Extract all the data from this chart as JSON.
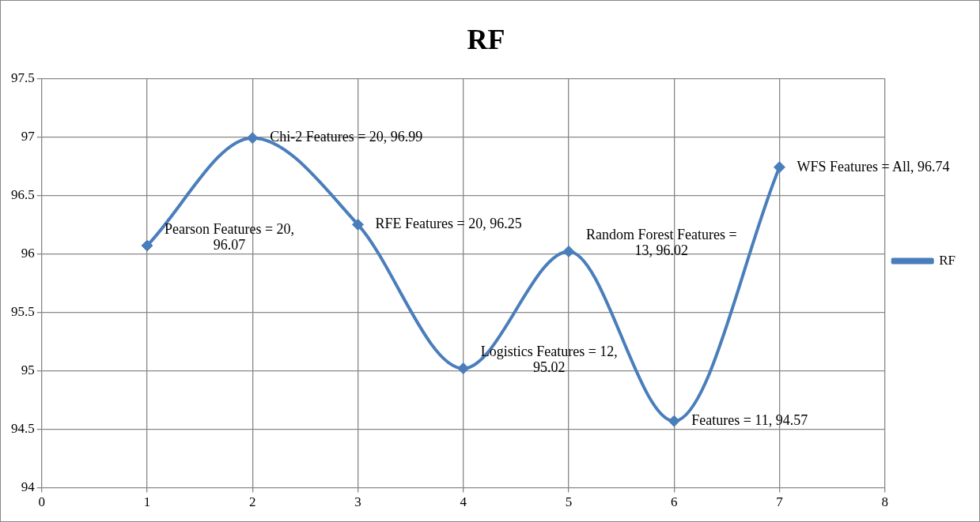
{
  "chart_data": {
    "type": "line",
    "title": "RF",
    "x": [
      1,
      2,
      3,
      4,
      5,
      6,
      7
    ],
    "series": [
      {
        "name": "RF",
        "color": "#4a7ebb",
        "values": [
          96.07,
          96.99,
          96.25,
          95.02,
          96.02,
          94.57,
          96.74
        ]
      }
    ],
    "xlim": [
      0,
      8
    ],
    "xticks": [
      0,
      1,
      2,
      3,
      4,
      5,
      6,
      7,
      8
    ],
    "ylim": [
      94,
      97.5
    ],
    "yticks": [
      94,
      94.5,
      95,
      95.5,
      96,
      96.5,
      97,
      97.5
    ],
    "grid": true,
    "legend": "right",
    "marker": "diamond",
    "line_style": "solid",
    "annotations": [
      {
        "text": "Pearson Features = 20, 96.07",
        "x": 1,
        "y": 96.07
      },
      {
        "text": "Chi-2 Features = 20, 96.99",
        "x": 2,
        "y": 96.99
      },
      {
        "text": "RFE Features = 20, 96.25",
        "x": 3,
        "y": 96.25
      },
      {
        "text": "Logistics Features = 12, 95.02",
        "x": 4,
        "y": 95.02
      },
      {
        "text": "Random Forest Features = 13, 96.02",
        "x": 5,
        "y": 96.02
      },
      {
        "text": "Features = 11, 94.57",
        "x": 6,
        "y": 94.57
      },
      {
        "text": "WFS Features = All, 96.74",
        "x": 7,
        "y": 96.74
      }
    ]
  }
}
